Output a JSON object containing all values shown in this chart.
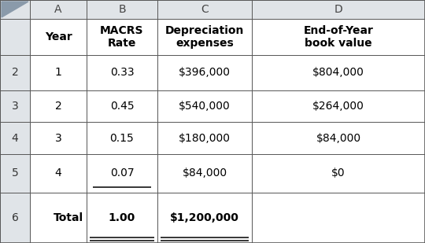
{
  "col_headers": [
    "A",
    "B",
    "C",
    "D"
  ],
  "header_row": {
    "A": "Year",
    "B": "MACRS\nRate",
    "C": "Depreciation\nexpenses",
    "D": "End-of-Year\nbook value"
  },
  "data_rows": [
    {
      "row": "2",
      "A": "1",
      "B": "0.33",
      "C": "$396,000",
      "D": "$804,000"
    },
    {
      "row": "3",
      "A": "2",
      "B": "0.45",
      "C": "$540,000",
      "D": "$264,000"
    },
    {
      "row": "4",
      "A": "3",
      "B": "0.15",
      "C": "$180,000",
      "D": "$84,000"
    },
    {
      "row": "5",
      "A": "4",
      "B": "0.07",
      "C": "$84,000",
      "D": "$0"
    },
    {
      "row": "6",
      "A": "Total",
      "B": "1.00",
      "C": "$1,200,000",
      "D": ""
    }
  ],
  "header_bg": "#e0e4e8",
  "rownumber_bg": "#e0e4e8",
  "cell_bg": "#ffffff",
  "border_color": "#5a5a5a",
  "text_color": "#000000",
  "triangle_color": "#8a9aaa",
  "col_letter_fontsize": 10,
  "header_fontsize": 10,
  "data_fontsize": 10,
  "rownumber_fontsize": 10
}
